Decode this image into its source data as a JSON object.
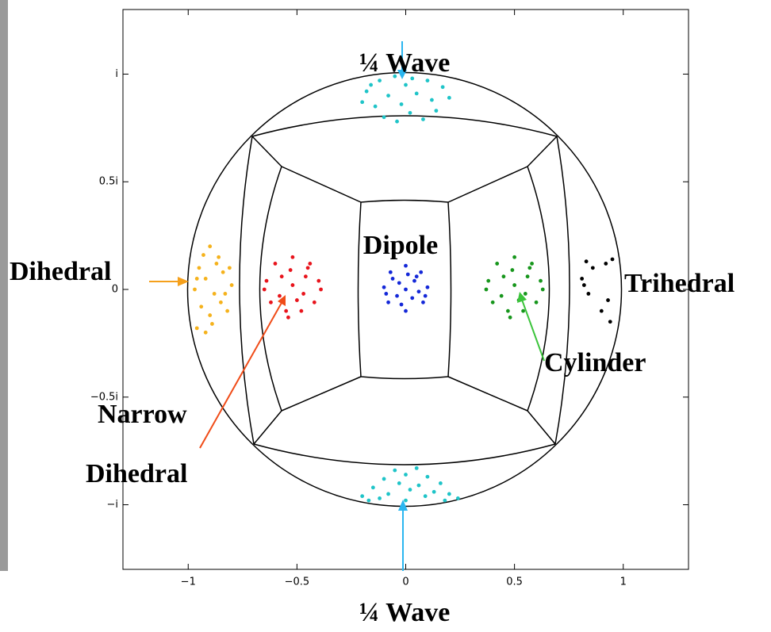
{
  "chart_data": {
    "type": "scatter",
    "xlim": [
      -1.3,
      1.3
    ],
    "ylim": [
      -1.3,
      1.3
    ],
    "xticks": [
      {
        "value": -1,
        "label": "−1"
      },
      {
        "value": -0.5,
        "label": "−0.5"
      },
      0,
      0.5,
      1
    ],
    "yticks": [
      {
        "value": -1,
        "label": "−i"
      },
      {
        "value": -0.5,
        "label": "−0.5i"
      },
      0,
      {
        "value": 0.5,
        "label": "0.5i"
      },
      {
        "value": 1,
        "label": "i"
      }
    ],
    "annotations": [
      "¼ Wave",
      "Dipole",
      "Dihedral",
      "Narrow",
      "Dihedral",
      "Trihedral",
      "Cylinder",
      "¼ Wave"
    ],
    "series": [
      {
        "color": "#1fc4c8",
        "x": [
          -0.18,
          -0.12,
          -0.05,
          0.03,
          0.1,
          0.17,
          -0.2,
          -0.14,
          -0.08,
          -0.02,
          0.05,
          0.12,
          0.2,
          -0.1,
          -0.04,
          0.02,
          0.08,
          0.14,
          0.0,
          -0.16
        ],
        "values": [
          0.92,
          0.97,
          0.99,
          0.98,
          0.97,
          0.94,
          0.87,
          0.85,
          0.9,
          0.86,
          0.91,
          0.88,
          0.89,
          0.8,
          0.78,
          0.82,
          0.79,
          0.83,
          0.95,
          0.95
        ]
      },
      {
        "color": "#1fc4c8",
        "x": [
          -0.2,
          -0.15,
          -0.1,
          -0.05,
          0.0,
          0.05,
          0.1,
          0.16,
          0.2,
          -0.17,
          -0.08,
          0.02,
          0.09,
          0.18,
          -0.12,
          -0.03,
          0.06,
          0.13,
          0.24,
          0.0
        ],
        "values": [
          -0.96,
          -0.92,
          -0.88,
          -0.84,
          -0.86,
          -0.83,
          -0.87,
          -0.9,
          -0.95,
          -0.98,
          -0.95,
          -0.93,
          -0.96,
          -0.98,
          -0.97,
          -0.9,
          -0.91,
          -0.94,
          -0.97,
          -0.98
        ]
      },
      {
        "color": "#f5b21c",
        "x": [
          -0.97,
          -0.95,
          -0.9,
          -0.86,
          -0.92,
          -0.84,
          -0.8,
          -0.88,
          -0.94,
          -0.9,
          -0.85,
          -0.96,
          -0.92,
          -0.82,
          -0.87,
          -0.93,
          -0.83,
          -0.89,
          -0.96,
          -0.81
        ],
        "values": [
          0.0,
          0.1,
          0.2,
          0.15,
          0.05,
          0.08,
          0.02,
          -0.02,
          -0.08,
          -0.12,
          -0.06,
          -0.18,
          -0.2,
          -0.1,
          0.12,
          0.16,
          -0.02,
          -0.16,
          0.05,
          0.1
        ]
      },
      {
        "color": "#e8141c",
        "x": [
          -0.52,
          -0.6,
          -0.44,
          -0.64,
          -0.4,
          -0.62,
          -0.42,
          -0.55,
          -0.48,
          -0.52,
          -0.57,
          -0.46,
          -0.58,
          -0.47,
          -0.53,
          -0.5,
          -0.65,
          -0.39,
          -0.54,
          -0.45
        ],
        "values": [
          0.15,
          0.12,
          0.12,
          0.04,
          0.04,
          -0.06,
          -0.06,
          -0.1,
          -0.1,
          0.02,
          0.06,
          0.06,
          -0.03,
          -0.02,
          0.09,
          -0.05,
          0.0,
          0.0,
          -0.13,
          0.1
        ]
      },
      {
        "color": "#1428d8",
        "x": [
          0,
          -0.07,
          0.07,
          -0.1,
          0.1,
          -0.08,
          0.08,
          0,
          -0.03,
          0.04,
          -0.04,
          0.03,
          0,
          -0.06,
          0.06,
          0.01,
          -0.02,
          0.05,
          -0.09,
          0.09
        ],
        "values": [
          0.11,
          0.08,
          0.08,
          0.01,
          0.01,
          -0.06,
          -0.06,
          -0.1,
          0.03,
          0.04,
          -0.03,
          -0.04,
          0,
          0.05,
          -0.01,
          0.07,
          -0.07,
          0.06,
          -0.02,
          -0.03
        ]
      },
      {
        "color": "#17961c",
        "x": [
          0.5,
          0.42,
          0.58,
          0.38,
          0.62,
          0.4,
          0.6,
          0.47,
          0.54,
          0.5,
          0.45,
          0.56,
          0.44,
          0.55,
          0.49,
          0.52,
          0.37,
          0.63,
          0.48,
          0.57
        ],
        "values": [
          0.15,
          0.12,
          0.12,
          0.04,
          0.04,
          -0.06,
          -0.06,
          -0.1,
          -0.1,
          0.02,
          0.06,
          0.06,
          -0.03,
          -0.02,
          0.09,
          -0.05,
          0.0,
          0.0,
          -0.13,
          0.1
        ]
      },
      {
        "color": "#000000",
        "x": [
          0.83,
          0.86,
          0.82,
          0.84,
          0.92,
          0.95,
          0.93,
          0.9,
          0.94,
          0.81
        ],
        "values": [
          0.13,
          0.1,
          0.02,
          -0.02,
          0.12,
          0.14,
          -0.05,
          -0.1,
          -0.15,
          0.05
        ]
      }
    ]
  }
}
